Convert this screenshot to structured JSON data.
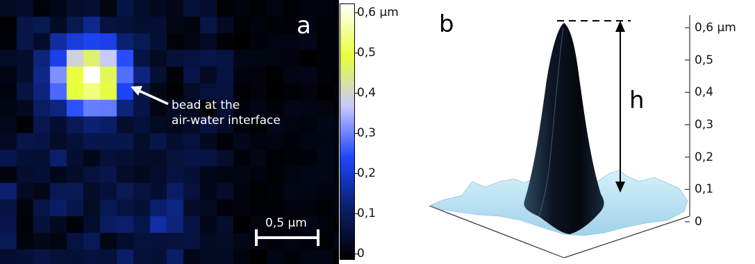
{
  "panel_a": {
    "letter": "a",
    "annotation": {
      "line1": "bead at the",
      "line2": "air-water interface"
    },
    "scale_bar_label": "0,5 µm",
    "colorbar": {
      "ticks": [
        {
          "value": 0.6,
          "label": "0,6 µm"
        },
        {
          "value": 0.5,
          "label": "0,5"
        },
        {
          "value": 0.4,
          "label": "0,4"
        },
        {
          "value": 0.3,
          "label": "0,3"
        },
        {
          "value": 0.2,
          "label": "0,2"
        },
        {
          "value": 0.1,
          "label": "0,1"
        },
        {
          "value": 0,
          "label": "0"
        }
      ],
      "range": [
        0,
        0.65
      ],
      "colormap": [
        "#000000",
        "#0a1f6a",
        "#1e46ff",
        "#c8c8ff",
        "#e8ff3a",
        "#ffffff"
      ]
    }
  },
  "panel_b": {
    "letter": "b",
    "height_label": "h",
    "z_axis": {
      "ticks": [
        {
          "value": 0.6,
          "label": "0,6 µm"
        },
        {
          "value": 0.5,
          "label": "0,5"
        },
        {
          "value": 0.4,
          "label": "0,4"
        },
        {
          "value": 0.3,
          "label": "0,3"
        },
        {
          "value": 0.2,
          "label": "0,2"
        },
        {
          "value": 0.1,
          "label": "0,1"
        },
        {
          "value": 0,
          "label": "0"
        }
      ],
      "range": [
        0,
        0.62
      ]
    },
    "peak_color": "#0b1020",
    "base_color": "#bfe6f5"
  }
}
